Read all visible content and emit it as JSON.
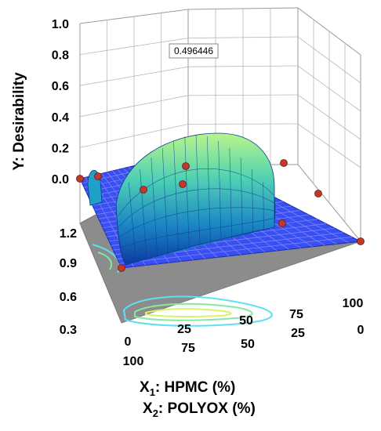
{
  "chart_data": {
    "type": "surface3d",
    "zlabel": "Y: Desirability",
    "zlim": [
      0.0,
      1.0
    ],
    "z_ticks": [
      "1.0",
      "0.8",
      "0.6",
      "0.4",
      "0.2",
      "0.0"
    ],
    "floor_ticks_left": [
      "1.2",
      "0.9",
      "0.6",
      "0.3"
    ],
    "x1": {
      "label_prefix": "X",
      "label_sub": "1",
      "label_rest": ": HPMC (%)",
      "ticks": [
        "0",
        "25",
        "50",
        "75",
        "100"
      ]
    },
    "x2": {
      "label_prefix": "X",
      "label_sub": "2",
      "label_rest": ": POLYOX (%)",
      "ticks": [
        "100",
        "75",
        "50",
        "25",
        "0"
      ]
    },
    "callout": "0.496446",
    "design_points": 10,
    "colors": {
      "plane": "#3a4ff0",
      "floor": "#8c8c8c",
      "point": "#c0392b",
      "surface_top": "#b9f58a",
      "surface_mid": "#1fa0c8",
      "surface_low": "#0c3fa8"
    }
  }
}
